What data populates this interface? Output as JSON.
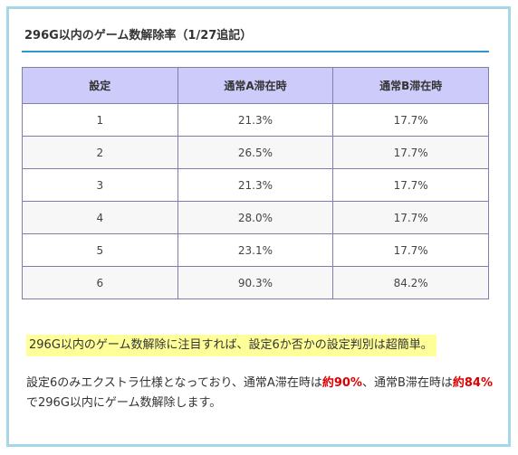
{
  "heading": "296G以内のゲーム数解除率（1/27追記）",
  "table": {
    "headers": [
      "設定",
      "通常A滞在時",
      "通常B滞在時"
    ],
    "rows": [
      [
        "1",
        "21.3%",
        "17.7%"
      ],
      [
        "2",
        "26.5%",
        "17.7%"
      ],
      [
        "3",
        "21.3%",
        "17.7%"
      ],
      [
        "4",
        "28.0%",
        "17.7%"
      ],
      [
        "5",
        "23.1%",
        "17.7%"
      ],
      [
        "6",
        "90.3%",
        "84.2%"
      ]
    ]
  },
  "highlight_text": "296G以内のゲーム数解除に注目すれば、設定6か否かの設定判別は超簡単。",
  "paragraph": {
    "part1": "設定6のみエクストラ仕様となっており、通常A滞在時は",
    "red1": "約90%",
    "part2": "、通常B滞在時は",
    "red2": "約84%",
    "part3": "で296G以内にゲーム数解除します。"
  },
  "colors": {
    "frame_border": "#a6d6ea",
    "heading_underline": "#2b97cd",
    "table_header_bg": "#cccbf9",
    "table_border": "#7f7fa9",
    "highlight_bg": "#ffff99",
    "emphasis_red": "#dd0000"
  }
}
